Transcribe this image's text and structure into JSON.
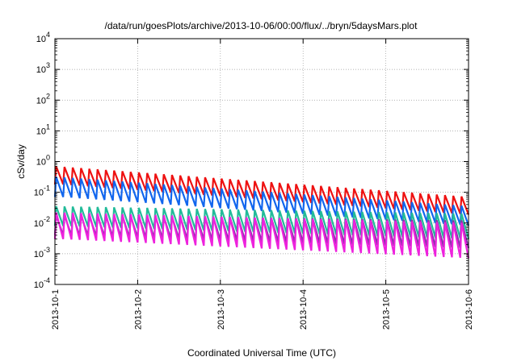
{
  "chart_data": {
    "type": "line",
    "title": "/data/run/goesPlots/archive/2013-10-06/00:00/flux/../bryn/5daysMars.plot",
    "xlabel": "Coordinated Universal Time (UTC)",
    "ylabel": "cSv/day",
    "x_range": [
      "2013-10-01T00:00",
      "2013-10-06T00:00"
    ],
    "y_scale": "log",
    "ylim": [
      0.0001,
      10000
    ],
    "grid": true,
    "x_ticks": [
      "2013-10-1",
      "2013-10-2",
      "2013-10-3",
      "2013-10-4",
      "2013-10-5",
      "2013-10-6"
    ],
    "y_ticks": [
      {
        "base": "10",
        "exp": "-4"
      },
      {
        "base": "10",
        "exp": "-3"
      },
      {
        "base": "10",
        "exp": "-2"
      },
      {
        "base": "10",
        "exp": "-1"
      },
      {
        "base": "10",
        "exp": "0"
      },
      {
        "base": "10",
        "exp": "1"
      },
      {
        "base": "10",
        "exp": "2"
      },
      {
        "base": "10",
        "exp": "3"
      },
      {
        "base": "10",
        "exp": "4"
      }
    ],
    "series": [
      {
        "color": "#ee1111",
        "pattern": "sawtooth",
        "start_peak": 0.7,
        "end_peak": 0.07,
        "start_trough": 0.18,
        "end_trough": 0.018
      },
      {
        "color": "#1166ee",
        "pattern": "sawtooth",
        "start_peak": 0.32,
        "end_peak": 0.035,
        "start_trough": 0.07,
        "end_trough": 0.008
      },
      {
        "color": "#22bb99",
        "pattern": "sawtooth",
        "start_peak": 0.035,
        "end_peak": 0.02,
        "start_trough": 0.008,
        "end_trough": 0.003
      },
      {
        "color": "#8833aa",
        "pattern": "sawtooth",
        "start_peak": 0.018,
        "end_peak": 0.012,
        "start_trough": 0.004,
        "end_trough": 0.0015
      },
      {
        "color": "#ee22dd",
        "pattern": "sawtooth",
        "start_peak": 0.022,
        "end_peak": 0.01,
        "start_trough": 0.003,
        "end_trough": 0.0007
      }
    ]
  }
}
